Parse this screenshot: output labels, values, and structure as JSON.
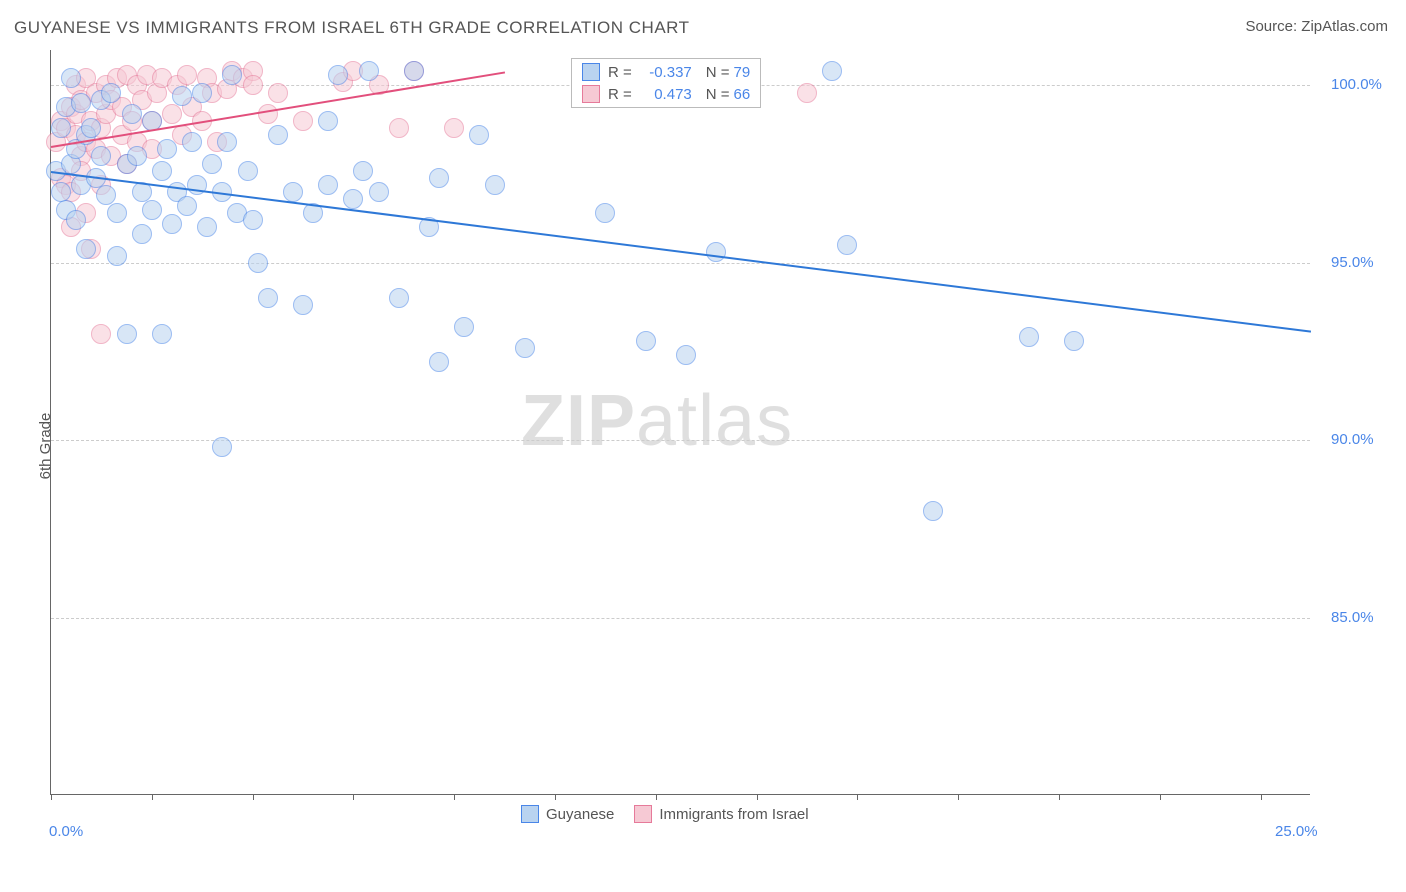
{
  "title": "GUYANESE VS IMMIGRANTS FROM ISRAEL 6TH GRADE CORRELATION CHART",
  "source": "Source: ZipAtlas.com",
  "ylabel": "6th Grade",
  "watermark_a": "ZIP",
  "watermark_b": "atlas",
  "chart": {
    "type": "scatter",
    "background_color": "#ffffff",
    "grid_color": "#cccccc",
    "axis_color": "#666666",
    "marker_radius": 10,
    "marker_opacity": 0.55,
    "xrange": [
      0,
      25
    ],
    "yrange": [
      80,
      101
    ],
    "ygrid": [
      {
        "value": 100,
        "label": "100.0%"
      },
      {
        "value": 95,
        "label": "95.0%"
      },
      {
        "value": 90,
        "label": "90.0%"
      },
      {
        "value": 85,
        "label": "85.0%"
      }
    ],
    "xticks": [
      0,
      2,
      4,
      6,
      8,
      10,
      12,
      14,
      16,
      18,
      20,
      22,
      24
    ],
    "xtick_labels": [
      {
        "value": 0,
        "label": "0.0%"
      },
      {
        "value": 25,
        "label": "25.0%"
      }
    ],
    "series": [
      {
        "id": "guyanese",
        "label": "Guyanese",
        "fill": "#b9d3f0",
        "stroke": "#4a86e8",
        "line_color": "#2e78d7",
        "R": "-0.337",
        "N": "79",
        "trend": {
          "x1": 0.0,
          "y1": 97.6,
          "x2": 25.0,
          "y2": 93.1
        },
        "points": [
          [
            0.1,
            97.6
          ],
          [
            0.2,
            98.8
          ],
          [
            0.2,
            97.0
          ],
          [
            0.3,
            99.4
          ],
          [
            0.3,
            96.5
          ],
          [
            0.4,
            97.8
          ],
          [
            0.4,
            100.2
          ],
          [
            0.5,
            98.2
          ],
          [
            0.5,
            96.2
          ],
          [
            0.6,
            99.5
          ],
          [
            0.6,
            97.2
          ],
          [
            0.7,
            98.6
          ],
          [
            0.7,
            95.4
          ],
          [
            0.8,
            98.8
          ],
          [
            0.9,
            97.4
          ],
          [
            1.0,
            98.0
          ],
          [
            1.0,
            99.6
          ],
          [
            1.1,
            96.9
          ],
          [
            1.2,
            99.8
          ],
          [
            1.3,
            96.4
          ],
          [
            1.3,
            95.2
          ],
          [
            1.5,
            97.8
          ],
          [
            1.5,
            93.0
          ],
          [
            1.6,
            99.2
          ],
          [
            1.7,
            98.0
          ],
          [
            1.8,
            97.0
          ],
          [
            1.8,
            95.8
          ],
          [
            2.0,
            99.0
          ],
          [
            2.0,
            96.5
          ],
          [
            2.2,
            97.6
          ],
          [
            2.2,
            93.0
          ],
          [
            2.3,
            98.2
          ],
          [
            2.4,
            96.1
          ],
          [
            2.5,
            97.0
          ],
          [
            2.6,
            99.7
          ],
          [
            2.7,
            96.6
          ],
          [
            2.8,
            98.4
          ],
          [
            2.9,
            97.2
          ],
          [
            3.0,
            99.8
          ],
          [
            3.1,
            96.0
          ],
          [
            3.2,
            97.8
          ],
          [
            3.4,
            89.8
          ],
          [
            3.4,
            97.0
          ],
          [
            3.5,
            98.4
          ],
          [
            3.6,
            100.3
          ],
          [
            3.7,
            96.4
          ],
          [
            3.9,
            97.6
          ],
          [
            4.0,
            96.2
          ],
          [
            4.1,
            95.0
          ],
          [
            4.3,
            94.0
          ],
          [
            4.5,
            98.6
          ],
          [
            4.8,
            97.0
          ],
          [
            5.0,
            93.8
          ],
          [
            5.2,
            96.4
          ],
          [
            5.5,
            97.2
          ],
          [
            5.5,
            99.0
          ],
          [
            5.7,
            100.3
          ],
          [
            6.0,
            96.8
          ],
          [
            6.2,
            97.6
          ],
          [
            6.3,
            100.4
          ],
          [
            6.5,
            97.0
          ],
          [
            6.9,
            94.0
          ],
          [
            7.2,
            100.4
          ],
          [
            7.5,
            96.0
          ],
          [
            7.7,
            97.4
          ],
          [
            7.7,
            92.2
          ],
          [
            8.2,
            93.2
          ],
          [
            8.5,
            98.6
          ],
          [
            8.8,
            97.2
          ],
          [
            9.4,
            92.6
          ],
          [
            11.0,
            96.4
          ],
          [
            11.8,
            92.8
          ],
          [
            12.6,
            92.4
          ],
          [
            13.2,
            95.3
          ],
          [
            15.5,
            100.4
          ],
          [
            15.8,
            95.5
          ],
          [
            17.5,
            88.0
          ],
          [
            19.4,
            92.9
          ],
          [
            20.3,
            92.8
          ]
        ]
      },
      {
        "id": "israel",
        "label": "Immigrants from Israel",
        "fill": "#f6c9d4",
        "stroke": "#e67a9a",
        "line_color": "#e24f7c",
        "R": "0.473",
        "N": "66",
        "trend": {
          "x1": 0.0,
          "y1": 98.3,
          "x2": 9.0,
          "y2": 100.4
        },
        "points": [
          [
            0.1,
            98.4
          ],
          [
            0.2,
            99.0
          ],
          [
            0.2,
            97.4
          ],
          [
            0.3,
            98.8
          ],
          [
            0.3,
            97.2
          ],
          [
            0.4,
            99.4
          ],
          [
            0.4,
            97.0
          ],
          [
            0.4,
            96.0
          ],
          [
            0.5,
            98.6
          ],
          [
            0.5,
            100.0
          ],
          [
            0.5,
            99.2
          ],
          [
            0.6,
            98.0
          ],
          [
            0.6,
            99.6
          ],
          [
            0.6,
            97.6
          ],
          [
            0.7,
            98.4
          ],
          [
            0.7,
            100.2
          ],
          [
            0.7,
            96.4
          ],
          [
            0.8,
            99.0
          ],
          [
            0.8,
            95.4
          ],
          [
            0.9,
            98.2
          ],
          [
            0.9,
            99.8
          ],
          [
            1.0,
            97.2
          ],
          [
            1.0,
            98.8
          ],
          [
            1.1,
            100.0
          ],
          [
            1.1,
            99.2
          ],
          [
            1.2,
            98.0
          ],
          [
            1.2,
            99.6
          ],
          [
            1.3,
            100.2
          ],
          [
            1.4,
            98.6
          ],
          [
            1.4,
            99.4
          ],
          [
            1.5,
            97.8
          ],
          [
            1.5,
            100.3
          ],
          [
            1.6,
            99.0
          ],
          [
            1.7,
            100.0
          ],
          [
            1.7,
            98.4
          ],
          [
            1.8,
            99.6
          ],
          [
            1.9,
            100.3
          ],
          [
            2.0,
            99.0
          ],
          [
            2.0,
            98.2
          ],
          [
            2.1,
            99.8
          ],
          [
            2.2,
            100.2
          ],
          [
            2.4,
            99.2
          ],
          [
            2.5,
            100.0
          ],
          [
            2.6,
            98.6
          ],
          [
            2.7,
            100.3
          ],
          [
            2.8,
            99.4
          ],
          [
            3.0,
            99.0
          ],
          [
            3.1,
            100.2
          ],
          [
            3.2,
            99.8
          ],
          [
            3.3,
            98.4
          ],
          [
            3.5,
            99.9
          ],
          [
            3.6,
            100.4
          ],
          [
            1.0,
            93.0
          ],
          [
            3.8,
            100.2
          ],
          [
            4.0,
            100.4
          ],
          [
            4.0,
            100.0
          ],
          [
            4.3,
            99.2
          ],
          [
            4.5,
            99.8
          ],
          [
            5.0,
            99.0
          ],
          [
            5.8,
            100.1
          ],
          [
            6.0,
            100.4
          ],
          [
            6.5,
            100.0
          ],
          [
            6.9,
            98.8
          ],
          [
            7.2,
            100.4
          ],
          [
            8.0,
            98.8
          ],
          [
            15.0,
            99.8
          ]
        ]
      }
    ],
    "legend": {
      "items": [
        {
          "series": "guyanese"
        },
        {
          "series": "israel"
        }
      ]
    }
  }
}
